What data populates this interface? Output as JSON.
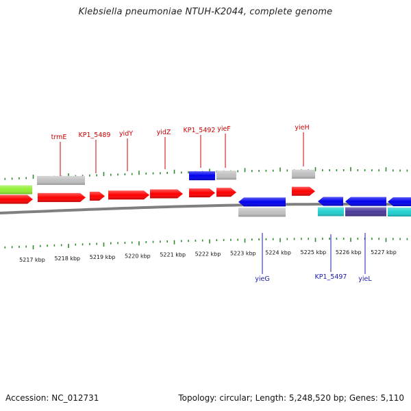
{
  "title": "Klebsiella pneumoniae NTUH-K2044, complete genome",
  "footer": {
    "accession": "Accession: NC_012731",
    "summary": "Topology: circular; Length: 5,248,520 bp; Genes: 5,110"
  },
  "colors": {
    "red": "#ff0000",
    "grey": "#c0c0c0",
    "blue": "#0000ee",
    "cyan": "#20d0d0",
    "purple": "#4a3a9a",
    "lime": "#90ee30",
    "tick": "#2e8b2e",
    "backbone": "#7f7f7f",
    "label_top": "#cc0000",
    "label_bottom": "#1a1aaa"
  },
  "scale_labels": [
    "5217 kbp",
    "5218 kbp",
    "5219 kbp",
    "5220 kbp",
    "5221 kbp",
    "5222 kbp",
    "5223 kbp",
    "5224 kbp",
    "5225 kbp",
    "5226 kbp",
    "5227 kbp"
  ],
  "top_labels": [
    "trmE",
    "KP1_5489",
    "yidY",
    "yidZ",
    "KP1_5492",
    "yieF",
    "yieH"
  ],
  "bottom_labels": [
    "yieG",
    "KP1_5497",
    "yieL"
  ]
}
